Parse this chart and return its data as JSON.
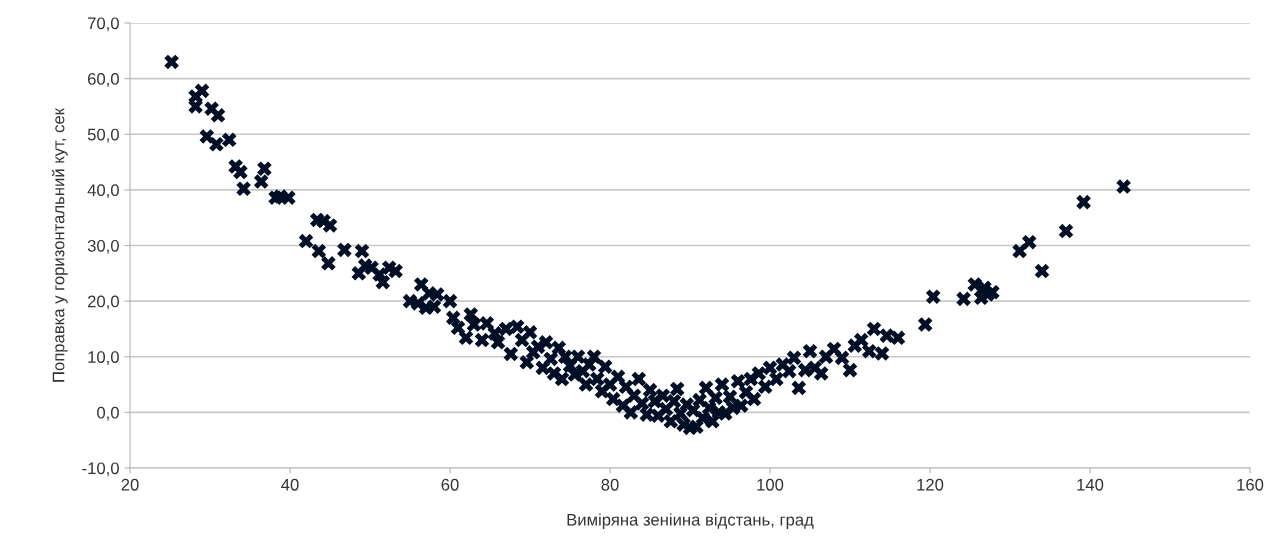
{
  "chart_data": {
    "type": "scatter",
    "xlabel": "Виміряна зеніина відстань, град",
    "ylabel": "Поправка у горизонтальний кут, сек",
    "xlim": [
      20,
      160
    ],
    "xticks": [
      20,
      40,
      60,
      80,
      100,
      120,
      140,
      160
    ],
    "ylim": [
      -10,
      70
    ],
    "yticks": [
      {
        "value": -10,
        "label": "-10,0"
      },
      {
        "value": 0,
        "label": "0,0"
      },
      {
        "value": 10,
        "label": "10,0"
      },
      {
        "value": 20,
        "label": "20,0"
      },
      {
        "value": 30,
        "label": "30,0"
      },
      {
        "value": 40,
        "label": "40,0"
      },
      {
        "value": 50,
        "label": "50,0"
      },
      {
        "value": 60,
        "label": "60,0"
      },
      {
        "value": 70,
        "label": "70,0"
      }
    ],
    "grid": "y",
    "legend": false,
    "marker": "cross",
    "series": [
      {
        "color": "#000f26",
        "x": [
          25.2,
          28.2,
          28.2,
          29,
          29.6,
          30.2,
          30.8,
          31,
          32.4,
          33.2,
          33.8,
          34.2,
          36.4,
          36.8,
          38.2,
          38.8,
          39.8,
          42,
          43.4,
          43.6,
          44.2,
          45,
          44.8,
          46.8,
          48.6,
          49,
          49.4,
          50.2,
          51.2,
          51.6,
          52.4,
          53.2,
          55,
          56,
          56.4,
          57,
          57.4,
          58,
          58.4,
          60,
          60.4,
          61,
          62,
          62.6,
          63,
          64,
          64.6,
          65.6,
          66,
          67,
          67.6,
          68.4,
          69,
          69.6,
          70,
          70.4,
          71,
          71.6,
          72,
          72.6,
          73,
          73.6,
          74,
          74.4,
          75,
          75.6,
          76,
          76.6,
          77,
          77.4,
          78,
          78.4,
          79,
          79.4,
          80,
          80.4,
          81,
          81.6,
          82,
          82.6,
          83,
          83.6,
          84,
          84.6,
          85,
          85.6,
          86,
          86.6,
          87,
          87.6,
          88,
          88.4,
          88.8,
          89.2,
          89.6,
          90,
          90.4,
          90.8,
          91.2,
          91.6,
          92,
          92.4,
          92.8,
          93.2,
          93.6,
          94,
          94.4,
          95,
          95.4,
          96,
          96.4,
          97,
          97.6,
          98,
          98.6,
          99.4,
          100,
          100.8,
          101.6,
          102.4,
          103,
          103.6,
          104.4,
          105,
          105.6,
          106.4,
          107,
          108,
          109,
          110,
          110.6,
          111.4,
          112.4,
          113,
          114,
          114.6,
          116,
          119.4,
          120.4,
          124.2,
          125.6,
          126.4,
          126.8,
          127.2,
          127.8,
          131.2,
          132.4,
          134,
          137,
          139.2,
          144.2
        ],
        "values": [
          63,
          56.8,
          55,
          57.8,
          49.6,
          54.6,
          48.2,
          53.4,
          49,
          44.2,
          43.2,
          40.2,
          41.5,
          43.8,
          38.6,
          38.8,
          38.6,
          30.8,
          34.6,
          29,
          34.4,
          33.6,
          26.8,
          29.2,
          25,
          29,
          26.4,
          26,
          24.8,
          23.4,
          26,
          25.4,
          20,
          19.6,
          23,
          18.8,
          21.4,
          19,
          21.2,
          20,
          17,
          15.2,
          13.4,
          17.6,
          15.8,
          13,
          16,
          14.2,
          12.6,
          15,
          10.5,
          15.4,
          13,
          9,
          14.4,
          10.8,
          11.8,
          8,
          12.6,
          9.6,
          7,
          11.6,
          6,
          10,
          8.4,
          6.8,
          10,
          7.4,
          5,
          8.6,
          10,
          6,
          3.8,
          8.2,
          5,
          2.4,
          6.4,
          1.2,
          4.6,
          0,
          3,
          6,
          1.6,
          -0.4,
          4,
          2,
          -0.6,
          3,
          0.6,
          -1.6,
          2,
          4.2,
          -0.2,
          -2.2,
          1.4,
          -2.8,
          0.4,
          -2.6,
          2.2,
          -1,
          4.4,
          0.8,
          -1.6,
          2.6,
          0,
          5,
          -0.2,
          2.8,
          0.8,
          5.6,
          1.2,
          3.6,
          6,
          2.4,
          7,
          4.6,
          8,
          6,
          8.6,
          7.4,
          9.8,
          4.4,
          7.6,
          11,
          8,
          7,
          10,
          11.4,
          9.8,
          7.6,
          12,
          13,
          11,
          15,
          10.6,
          13.8,
          13.4,
          15.8,
          20.8,
          20.4,
          23,
          20.6,
          22.4,
          21.2,
          21.6,
          29,
          30.6,
          25.4,
          32.6,
          37.8,
          40.6
        ]
      }
    ]
  }
}
